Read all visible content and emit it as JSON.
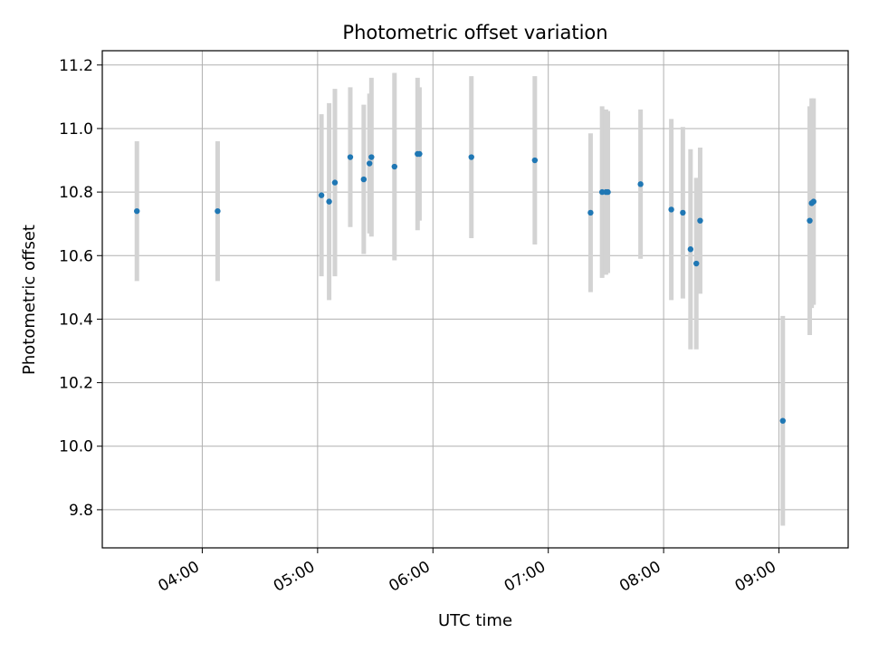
{
  "chart_data": {
    "type": "scatter",
    "title": "Photometric offset variation",
    "xlabel": "UTC time",
    "ylabel": "Photometric offset",
    "xlim": [
      "03:08",
      "09:36"
    ],
    "ylim": [
      9.68,
      11.245
    ],
    "grid": true,
    "x_ticks": [
      "04:00",
      "05:00",
      "06:00",
      "07:00",
      "08:00",
      "09:00"
    ],
    "y_ticks": [
      "9.8",
      "10.0",
      "10.2",
      "10.4",
      "10.6",
      "10.8",
      "11.0",
      "11.2"
    ],
    "colors": {
      "point": "#1f77b4",
      "errorbar": "#d3d3d3",
      "grid": "#b0b0b0"
    },
    "points": [
      {
        "x": "03:26",
        "y": 10.74,
        "err": 0.22
      },
      {
        "x": "04:08",
        "y": 10.74,
        "err": 0.22
      },
      {
        "x": "05:02",
        "y": 10.79,
        "err": 0.255
      },
      {
        "x": "05:06",
        "y": 10.77,
        "err": 0.31
      },
      {
        "x": "05:09",
        "y": 10.83,
        "err": 0.295
      },
      {
        "x": "05:17",
        "y": 10.91,
        "err": 0.22
      },
      {
        "x": "05:24",
        "y": 10.84,
        "err": 0.235
      },
      {
        "x": "05:27",
        "y": 10.89,
        "err": 0.22
      },
      {
        "x": "05:28",
        "y": 10.91,
        "err": 0.25
      },
      {
        "x": "05:40",
        "y": 10.88,
        "err": 0.295
      },
      {
        "x": "05:52",
        "y": 10.92,
        "err": 0.24
      },
      {
        "x": "05:53",
        "y": 10.92,
        "err": 0.21
      },
      {
        "x": "06:20",
        "y": 10.91,
        "err": 0.255
      },
      {
        "x": "06:53",
        "y": 10.9,
        "err": 0.265
      },
      {
        "x": "07:22",
        "y": 10.735,
        "err": 0.25
      },
      {
        "x": "07:28",
        "y": 10.8,
        "err": 0.27
      },
      {
        "x": "07:30",
        "y": 10.8,
        "err": 0.26
      },
      {
        "x": "07:31",
        "y": 10.8,
        "err": 0.255
      },
      {
        "x": "07:48",
        "y": 10.825,
        "err": 0.235
      },
      {
        "x": "08:04",
        "y": 10.745,
        "err": 0.285
      },
      {
        "x": "08:10",
        "y": 10.735,
        "err": 0.27
      },
      {
        "x": "08:14",
        "y": 10.62,
        "err": 0.315
      },
      {
        "x": "08:17",
        "y": 10.575,
        "err": 0.27
      },
      {
        "x": "08:19",
        "y": 10.71,
        "err": 0.23
      },
      {
        "x": "09:02",
        "y": 10.08,
        "err": 0.33
      },
      {
        "x": "09:16",
        "y": 10.71,
        "err": 0.36
      },
      {
        "x": "09:17",
        "y": 10.765,
        "err": 0.33
      },
      {
        "x": "09:18",
        "y": 10.77,
        "err": 0.325
      }
    ]
  }
}
